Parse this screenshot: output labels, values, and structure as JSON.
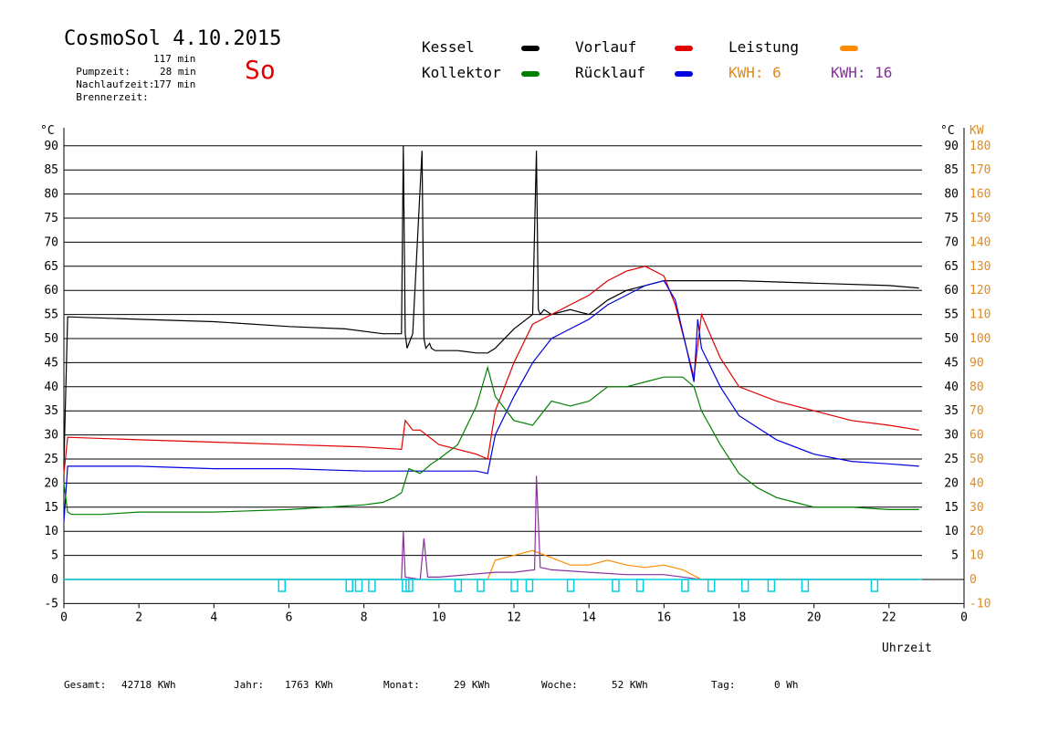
{
  "header": {
    "title": "CosmoSol 4.10.2015",
    "day": "So",
    "stats": [
      {
        "label": "Pumpzeit:",
        "value": "117 min"
      },
      {
        "label": "Nachlaufzeit:",
        "value": "28 min"
      },
      {
        "label": "Brennerzeit:",
        "value": "177 min"
      }
    ]
  },
  "legend": {
    "items": [
      {
        "label": "Kessel",
        "color": "#000000"
      },
      {
        "label": "Vorlauf",
        "color": "#e00000"
      },
      {
        "label": "Leistung",
        "color": "#ff8c00"
      },
      {
        "label": "Kollektor",
        "color": "#008000"
      },
      {
        "label": "Rücklauf",
        "color": "#0000e0"
      }
    ],
    "kwh_orange": "KWH: 6",
    "kwh_purple": "KWH: 16",
    "kwh_orange_color": "#e08a1e",
    "kwh_purple_color": "#8b2fa0"
  },
  "footer": {
    "items": [
      {
        "label": "Gesamt:",
        "value": "42718 KWh"
      },
      {
        "label": "Jahr:",
        "value": "1763 KWh"
      },
      {
        "label": "Monat:",
        "value": "29 KWh"
      },
      {
        "label": "Woche:",
        "value": "52 KWh"
      },
      {
        "label": "Tag:",
        "value": "0 Wh"
      }
    ]
  },
  "chart_data": {
    "type": "line",
    "xlabel": "Uhrzeit",
    "ylabel_left": "°C",
    "ylabel_right_temp": "°C",
    "ylabel_right_power": "KW",
    "xlim": [
      0,
      24
    ],
    "ylim": [
      -5,
      95
    ],
    "ylim_power": [
      -10,
      190
    ],
    "x_ticks": [
      "0",
      "2",
      "4",
      "6",
      "8",
      "10",
      "12",
      "14",
      "16",
      "18",
      "20",
      "22",
      "0"
    ],
    "y_ticks_left": [
      "-5",
      "0",
      "5",
      "10",
      "15",
      "20",
      "25",
      "30",
      "35",
      "40",
      "45",
      "50",
      "55",
      "60",
      "65",
      "70",
      "75",
      "80",
      "85",
      "90"
    ],
    "y_ticks_right_temp": [
      "5",
      "10",
      "15",
      "20",
      "25",
      "30",
      "35",
      "40",
      "45",
      "50",
      "55",
      "60",
      "65",
      "70",
      "75",
      "80",
      "85",
      "90"
    ],
    "y_ticks_right_power": [
      "-10",
      "0",
      "10",
      "20",
      "30",
      "40",
      "50",
      "60",
      "70",
      "80",
      "90",
      "100",
      "110",
      "120",
      "130",
      "140",
      "150",
      "160",
      "170",
      "180"
    ],
    "grid": true,
    "series": [
      {
        "name": "Kessel",
        "color": "#000000",
        "x": [
          0,
          0.1,
          2,
          4,
          6,
          7.5,
          8.5,
          9.0,
          9.05,
          9.1,
          9.15,
          9.3,
          9.55,
          9.6,
          9.65,
          9.75,
          9.8,
          9.9,
          10.5,
          11,
          11.3,
          11.5,
          12,
          12.5,
          12.6,
          12.65,
          12.7,
          12.8,
          13,
          13.5,
          14,
          14.5,
          15,
          15.5,
          16,
          16.2,
          16.8,
          18,
          20,
          22,
          22.8
        ],
        "y": [
          24,
          54.5,
          54,
          53.5,
          52.5,
          52,
          51,
          51,
          90,
          51,
          48,
          51,
          89,
          50,
          48,
          49,
          48,
          47.5,
          47.5,
          47,
          47,
          48,
          52,
          55,
          89,
          56,
          55,
          56,
          55,
          56,
          55,
          58,
          60,
          61,
          62,
          62,
          62,
          62,
          61.5,
          61,
          60.5
        ]
      },
      {
        "name": "Vorlauf",
        "color": "#e00000",
        "x": [
          0,
          0.1,
          2,
          4,
          6,
          8,
          9.0,
          9.1,
          9.3,
          9.5,
          10,
          10.5,
          11,
          11.3,
          11.5,
          12,
          12.5,
          13,
          13.5,
          14,
          14.5,
          15,
          15.5,
          16,
          16.3,
          16.6,
          16.8,
          17,
          17.5,
          18,
          19,
          20,
          21,
          22,
          22.8
        ],
        "y": [
          22,
          29.5,
          29,
          28.5,
          28,
          27.5,
          27,
          33,
          31,
          31,
          28,
          27,
          26,
          25,
          35,
          45,
          53,
          55,
          57,
          59,
          62,
          64,
          65,
          63,
          57,
          48,
          42,
          55,
          46,
          40,
          37,
          35,
          33,
          32,
          31
        ]
      },
      {
        "name": "Rücklauf",
        "color": "#0000e0",
        "x": [
          0,
          0.1,
          2,
          4,
          6,
          8,
          9.0,
          9.5,
          10,
          11,
          11.3,
          11.5,
          12,
          12.5,
          13,
          13.5,
          14,
          14.5,
          15,
          15.5,
          16,
          16.3,
          16.6,
          16.8,
          16.9,
          17,
          17.5,
          18,
          19,
          20,
          21,
          22,
          22.8
        ],
        "y": [
          12,
          23.5,
          23.5,
          23,
          23,
          22.5,
          22.5,
          22.5,
          22.5,
          22.5,
          22,
          30,
          38,
          45,
          50,
          52,
          54,
          57,
          59,
          61,
          62,
          58,
          48,
          41,
          54,
          48,
          40,
          34,
          29,
          26,
          24.5,
          24,
          23.5
        ]
      },
      {
        "name": "Kollektor",
        "color": "#008000",
        "x": [
          0,
          0.1,
          0.2,
          1,
          2,
          4,
          6,
          7,
          8,
          8.5,
          8.8,
          9.0,
          9.2,
          9.5,
          9.8,
          10,
          10.5,
          11,
          11.3,
          11.5,
          12,
          12.5,
          13,
          13.5,
          14,
          14.5,
          15,
          15.5,
          16,
          16.5,
          16.8,
          17,
          17.5,
          18,
          18.5,
          19,
          19.5,
          20,
          21,
          22,
          22.8
        ],
        "y": [
          20,
          14,
          13.5,
          13.5,
          14,
          14,
          14.5,
          15,
          15.5,
          16,
          17,
          18,
          23,
          22,
          24,
          25,
          28,
          36,
          44,
          38,
          33,
          32,
          37,
          36,
          37,
          40,
          40,
          41,
          42,
          42,
          40,
          35,
          28,
          22,
          19,
          17,
          16,
          15,
          15,
          14.5,
          14.5
        ]
      }
    ],
    "power_series": {
      "name": "Leistung",
      "color": "#ff8c00",
      "x": [
        0,
        11.3,
        11.5,
        12,
        12.5,
        13,
        13.5,
        14,
        14.5,
        15,
        15.5,
        16,
        16.5,
        17,
        22.8
      ],
      "y": [
        0,
        0,
        8,
        10,
        12,
        9,
        6,
        6,
        8,
        6,
        5,
        6,
        4,
        0,
        0
      ]
    },
    "energy_series": {
      "name": "KWH",
      "color": "#8b2fa0",
      "x": [
        0,
        9.0,
        9.05,
        9.1,
        9.5,
        9.6,
        9.7,
        10,
        11.5,
        12,
        12.55,
        12.6,
        12.7,
        13,
        14,
        15,
        16,
        17,
        22.8
      ],
      "y": [
        0,
        0,
        20,
        1,
        0,
        17,
        1,
        1,
        3,
        3,
        4,
        43,
        5,
        4,
        3,
        2,
        2,
        0,
        0
      ]
    },
    "pump_series": {
      "name": "Pumpe",
      "color": "#00d0e0",
      "pulses": [
        5.8,
        7.6,
        7.85,
        8.2,
        9.1,
        9.2,
        10.5,
        11.1,
        12.0,
        12.4,
        13.5,
        14.7,
        15.35,
        16.55,
        17.25,
        18.15,
        18.85,
        19.75,
        21.6
      ]
    }
  }
}
